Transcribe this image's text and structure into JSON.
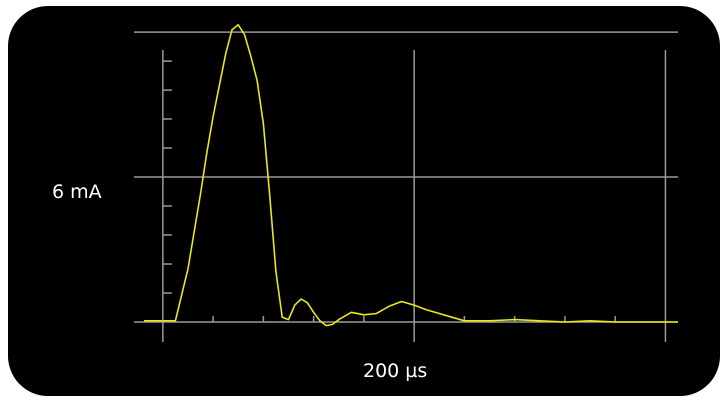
{
  "display": {
    "y_scale_label": "6 mA",
    "x_scale_label": "200 µs",
    "trace_color": "#e8e81a",
    "grid_color": "#9a9a9a",
    "background": "#000000"
  },
  "chart_data": {
    "type": "line",
    "title": "",
    "xlabel": "",
    "ylabel": "",
    "x_unit": "µs",
    "y_unit": "mA",
    "x_major_step": 200,
    "y_major_step": 6,
    "xlim": [
      -15,
      410
    ],
    "ylim": [
      0,
      12.5
    ],
    "grid": true,
    "series": [
      {
        "x": [
          -15,
          0,
          10,
          20,
          30,
          35,
          40,
          45,
          50,
          55,
          60,
          65,
          70,
          75,
          80,
          85,
          90,
          95,
          100,
          105,
          110,
          115,
          120,
          125,
          130,
          135,
          140,
          150,
          160,
          170,
          180,
          190,
          200,
          210,
          220,
          230,
          240,
          260,
          280,
          300,
          320,
          340,
          360,
          380,
          400,
          410
        ],
        "y": [
          0.05,
          0.05,
          0.05,
          2.2,
          5.3,
          7.0,
          8.5,
          9.8,
          11.1,
          12.1,
          12.3,
          11.9,
          11.0,
          10.0,
          8.2,
          5.3,
          2.1,
          0.2,
          0.1,
          0.7,
          0.95,
          0.8,
          0.4,
          0.05,
          -0.15,
          -0.1,
          0.1,
          0.4,
          0.3,
          0.35,
          0.65,
          0.85,
          0.7,
          0.5,
          0.35,
          0.2,
          0.05,
          0.05,
          0.1,
          0.05,
          0.0,
          0.05,
          0.0,
          0.0,
          0.0,
          0.0
        ]
      }
    ]
  }
}
